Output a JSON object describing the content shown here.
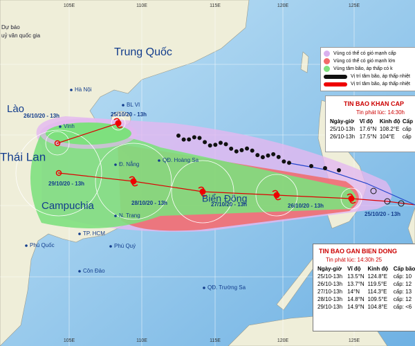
{
  "header": {
    "agency_lines": [
      "Dự báo",
      "uỷ văn quốc gia"
    ]
  },
  "grid": {
    "longitudes": [
      "105E",
      "110E",
      "115E",
      "120E",
      "125E"
    ]
  },
  "map_labels": {
    "countries": [
      "Trung Quốc",
      "Lào",
      "Thái Lan",
      "Campuchia",
      "Biển Đông"
    ],
    "places": [
      "Hà Nội",
      "BL VI",
      "Vinh",
      "Đ. Nẵng",
      "QĐ. Hoàng Sa",
      "N. Trang",
      "TP. HCM",
      "Phú Quốc",
      "Phú Quý",
      "Côn Đảo",
      "QĐ. Trường Sa"
    ],
    "dates": [
      "26/10/20 - 13h",
      "25/10/20 - 13h",
      "29/10/20 - 13h",
      "28/10/20 - 13h",
      "27/10/20 - 13h",
      "26/10/20 - 13h",
      "25/10/20 - 13h"
    ]
  },
  "legend": {
    "items": [
      "Vùng có thể có gió mạnh cấp",
      "Vùng có thể có gió mạnh lớn",
      "Vùng tâm bão, áp thấp có k",
      "Vị trí tâm bão, áp thấp nhiệt",
      "Vị trí tâm bão, áp thấp nhiệt"
    ]
  },
  "urgent_bulletin": {
    "title": "TIN BAO KHAN CAP",
    "issued": "Tin phát lúc: 14:30h",
    "columns": [
      "Ngày-giờ",
      "Vĩ độ",
      "Kinh độ",
      "Cấp"
    ],
    "rows": [
      [
        "25/10-13h",
        "17.6°N",
        "108.2°E",
        "cấp"
      ],
      [
        "26/10-13h",
        "17.5°N",
        "104°E",
        "cấp"
      ]
    ]
  },
  "east_sea_bulletin": {
    "title": "TIN BAO GAN BIEN DONG",
    "issued": "Tin phát lúc: 14:30h 25",
    "columns": [
      "Ngày-giờ",
      "Vĩ độ",
      "Kinh độ",
      "Cấp bão"
    ],
    "rows": [
      [
        "25/10-13h",
        "13.5°N",
        "124.8°E",
        "cấp: 10"
      ],
      [
        "26/10-13h",
        "13.7°N",
        "119.5°E",
        "cấp: 12"
      ],
      [
        "27/10-13h",
        "14°N",
        "114.3°E",
        "cấp: 13"
      ],
      [
        "28/10-13h",
        "14.8°N",
        "109.5°E",
        "cấp: 12"
      ],
      [
        "29/10-13h",
        "14.9°N",
        "104.8°E",
        "cấp: <6"
      ]
    ]
  }
}
